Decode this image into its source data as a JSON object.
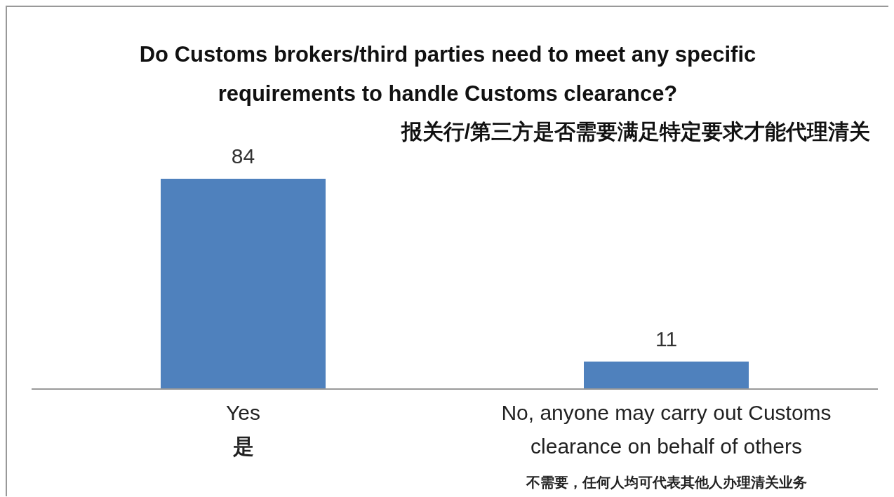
{
  "chart_data": {
    "type": "bar",
    "title": "Do Customs brokers/third parties need to meet any specific requirements to handle Customs clearance?",
    "subtitle": "报关行/第三方是否需要满足特定要求才能代理清关",
    "categories": [
      "Yes\n是",
      "No, anyone may carry out Customs\nclearance on behalf of others\n不需要，任何人均可代表其他人办理清关业务"
    ],
    "values": [
      84,
      11
    ],
    "color": "#4f81bd",
    "data_labels": true
  }
}
